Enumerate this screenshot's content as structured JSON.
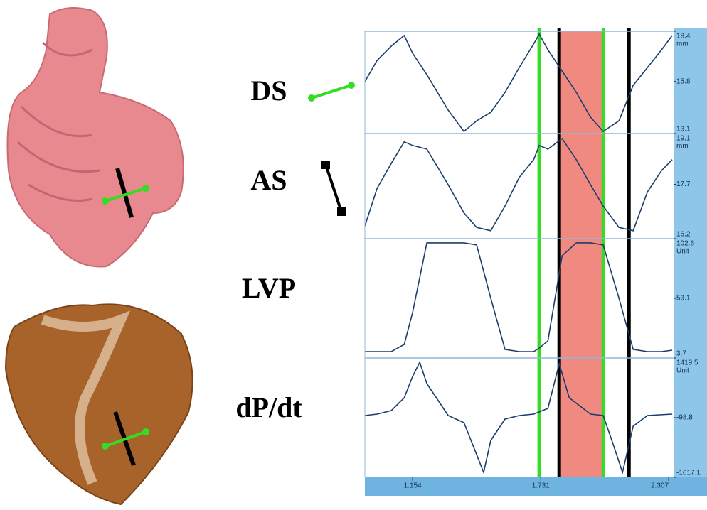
{
  "chart_data": [
    {
      "type": "line",
      "x": [
        0.939,
        0.994,
        1.058,
        1.116,
        1.154,
        1.218,
        1.314,
        1.385,
        1.442,
        1.506,
        1.57,
        1.634,
        1.699,
        1.724,
        1.763,
        1.827,
        1.891,
        1.955,
        2.012,
        2.083,
        2.147,
        2.211,
        2.275,
        2.323
      ],
      "series": [
        {
          "name": "DS",
          "color": "#1a3d6b",
          "values": [
            15.79,
            16.89,
            17.63,
            18.18,
            17.26,
            16.15,
            14.31,
            13.21,
            13.76,
            14.2,
            15.23,
            16.52,
            17.74,
            18.25,
            17.44,
            16.34,
            15.23,
            13.95,
            13.21,
            13.76,
            15.6,
            16.52,
            17.44,
            18.18
          ]
        }
      ],
      "xlim": [
        0.939,
        2.329
      ],
      "ylim": [
        13.1,
        18.4
      ],
      "yticks": [
        13.1,
        15.8,
        18.4
      ],
      "y_unit": "mm"
    },
    {
      "type": "line",
      "x": [
        0.939,
        0.994,
        1.058,
        1.116,
        1.154,
        1.218,
        1.314,
        1.385,
        1.442,
        1.506,
        1.57,
        1.634,
        1.699,
        1.724,
        1.763,
        1.827,
        1.891,
        1.955,
        2.012,
        2.083,
        2.147,
        2.211,
        2.275,
        2.323
      ],
      "series": [
        {
          "name": "AS",
          "color": "#1a3d6b",
          "values": [
            16.55,
            17.59,
            18.28,
            18.87,
            18.77,
            18.67,
            17.69,
            16.91,
            16.51,
            16.42,
            17.1,
            17.89,
            18.38,
            18.77,
            18.67,
            18.96,
            18.38,
            17.69,
            17.1,
            16.51,
            16.42,
            17.49,
            18.08,
            18.38
          ]
        }
      ],
      "xlim": [
        0.939,
        2.329
      ],
      "ylim": [
        16.2,
        19.1
      ],
      "yticks": [
        16.2,
        17.7,
        19.1
      ],
      "y_unit": "mm"
    },
    {
      "type": "line",
      "x": [
        0.939,
        0.994,
        1.058,
        1.116,
        1.154,
        1.218,
        1.314,
        1.385,
        1.442,
        1.506,
        1.57,
        1.634,
        1.699,
        1.724,
        1.763,
        1.827,
        1.891,
        1.955,
        2.012,
        2.083,
        2.147,
        2.211,
        2.275,
        2.323
      ],
      "series": [
        {
          "name": "LVP",
          "color": "#1a3d6b",
          "values": [
            9.0,
            9.0,
            9.0,
            14.9,
            41.4,
            99.1,
            99.1,
            99.1,
            97.4,
            53.2,
            10.8,
            9.0,
            9.0,
            11.9,
            17.8,
            88.5,
            99.1,
            99.1,
            97.4,
            53.2,
            10.8,
            9.0,
            9.0,
            10.2
          ]
        }
      ],
      "xlim": [
        0.939,
        2.329
      ],
      "ylim": [
        3.7,
        102.6
      ],
      "yticks": [
        3.7,
        53.1,
        102.6
      ],
      "y_unit": "Unit"
    },
    {
      "type": "line",
      "x": [
        0.939,
        0.994,
        1.058,
        1.116,
        1.154,
        1.186,
        1.218,
        1.314,
        1.385,
        1.442,
        1.474,
        1.506,
        1.57,
        1.634,
        1.699,
        1.763,
        1.814,
        1.859,
        1.955,
        2.012,
        2.051,
        2.099,
        2.147,
        2.211,
        2.323
      ],
      "series": [
        {
          "name": "dP/dt",
          "color": "#1a3d6b",
          "values": [
            -44.6,
            -8.4,
            82,
            407,
            950,
            1311,
            769,
            -44.6,
            -225,
            -1039,
            -1491,
            -677,
            -135,
            -45,
            -8,
            136,
            1275,
            407,
            -8,
            -45,
            -677,
            -1491,
            -316,
            -45,
            -8
          ]
        }
      ],
      "xlim": [
        0.939,
        2.329
      ],
      "ylim": [
        -1617.1,
        1419.5
      ],
      "yticks": [
        -1617.1,
        -98.8,
        1419.5
      ],
      "y_unit": "Unit",
      "xticks": [
        1.154,
        1.731,
        2.307
      ]
    }
  ],
  "cursors": [
    {
      "x": 1.724,
      "color": "#33dd22"
    },
    {
      "x": 1.814,
      "color": "#000000"
    },
    {
      "x": 2.013,
      "color": "#33dd22"
    },
    {
      "x": 2.128,
      "color": "#000000"
    }
  ],
  "highlight": {
    "range": [
      1.814,
      2.013
    ],
    "color": "#f08a80"
  }
}
